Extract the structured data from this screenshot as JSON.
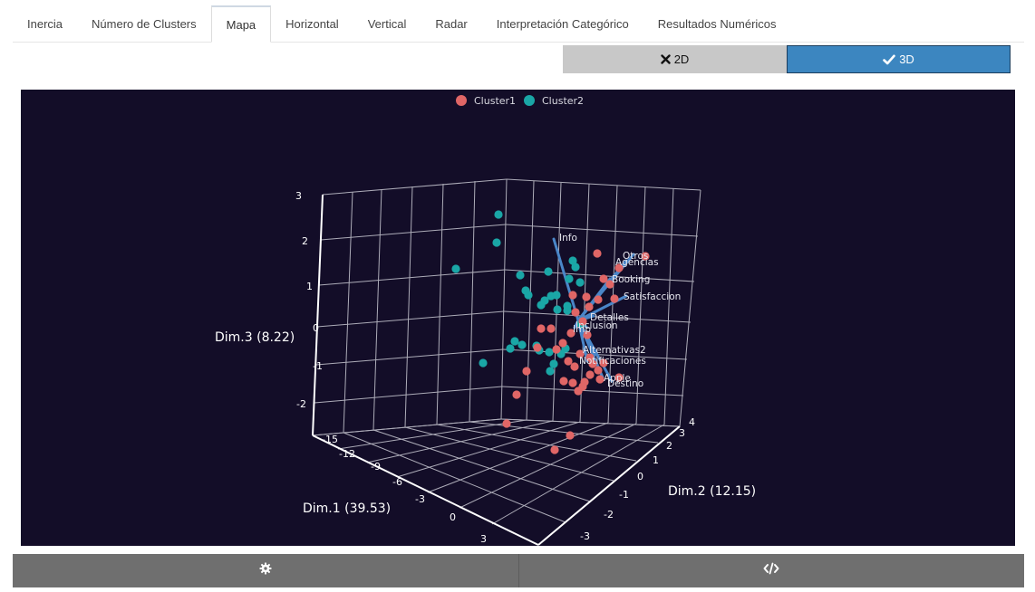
{
  "tabs": [
    {
      "label": "Inercia",
      "active": false
    },
    {
      "label": "Número de Clusters",
      "active": false
    },
    {
      "label": "Mapa",
      "active": true
    },
    {
      "label": "Horizontal",
      "active": false
    },
    {
      "label": "Vertical",
      "active": false
    },
    {
      "label": "Radar",
      "active": false
    },
    {
      "label": "Interpretación Categórico",
      "active": false
    },
    {
      "label": "Resultados Numéricos",
      "active": false
    }
  ],
  "view_toggle": {
    "option_2d": "2D",
    "option_3d": "3D",
    "selected": "3D",
    "icon_2d": "times-icon",
    "icon_3d": "check-icon"
  },
  "colors": {
    "cluster1": "#e06666",
    "cluster2": "#1aa6a6",
    "vector": "#4a86c8",
    "plot_background": "#130d28",
    "selected_toggle": "#3c86c0"
  },
  "chart_data": {
    "type": "scatter",
    "projection": "3d",
    "legend": [
      "Cluster1",
      "Cluster2"
    ],
    "legend_position": "top-center",
    "axes": {
      "x": {
        "label": "Dim.1 (39.53)",
        "ticks": [
          "-15",
          "-12",
          "-9",
          "-6",
          "-3",
          "0",
          "3"
        ]
      },
      "y": {
        "label": "Dim.2 (12.15)",
        "ticks": [
          "-3",
          "-2",
          "-1",
          "0",
          "1",
          "2",
          "3",
          "4"
        ]
      },
      "z": {
        "label": "Dim.3 (8.22)",
        "ticks": [
          "-2",
          "-1",
          "0",
          "1",
          "2",
          "3"
        ]
      }
    },
    "grid": true,
    "variable_labels": [
      "Info",
      "Otros",
      "Agencias",
      "Booking",
      "Satisfaccion",
      "Detalles",
      "Inclusion",
      "Imp",
      "Alternativas2",
      "Notificaciones",
      "Apple",
      "Destino"
    ]
  },
  "bottom_bar": {
    "settings_icon": "gear-icon",
    "code_icon": "code-icon"
  }
}
